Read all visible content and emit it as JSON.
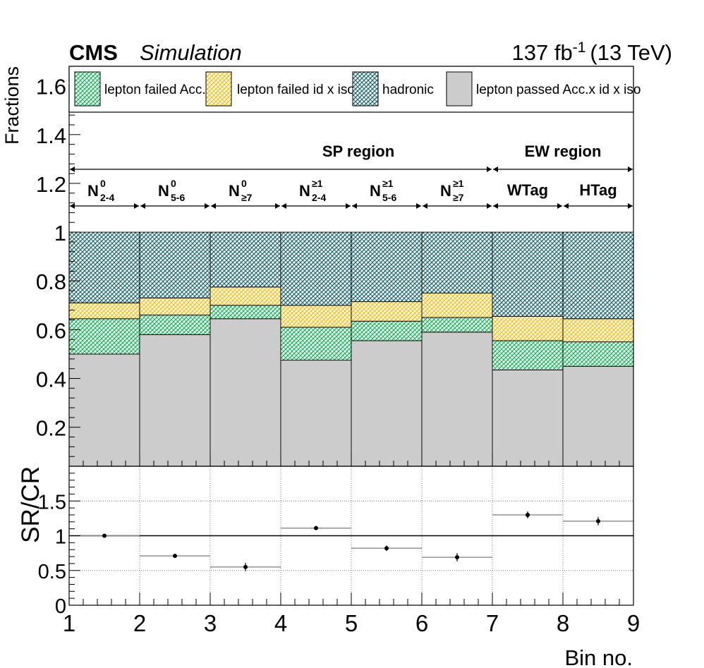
{
  "header": {
    "experiment": "CMS",
    "qualifier": "Simulation",
    "lumi_value": "137 fb",
    "lumi_exp": "-1",
    "energy": "(13 TeV)"
  },
  "chart_data": [
    {
      "type": "bar",
      "stacked": true,
      "ylabel": "Fractions",
      "xlim": [
        1,
        9
      ],
      "ylim": [
        0.04,
        1.68
      ],
      "yticks": [
        "0.2",
        "0.4",
        "0.6",
        "0.8",
        "1",
        "1.2",
        "1.4",
        "1.6"
      ],
      "bins": [
        1,
        2,
        3,
        4,
        5,
        6,
        7,
        8,
        9
      ],
      "series": [
        {
          "name": "lepton passed Acc.x id x iso",
          "values": [
            0.5,
            0.58,
            0.645,
            0.475,
            0.555,
            0.59,
            0.435,
            0.45
          ],
          "color": "#cccccc",
          "pattern": "solid"
        },
        {
          "name": "lepton failed Acc.",
          "values": [
            0.145,
            0.08,
            0.055,
            0.135,
            0.08,
            0.06,
            0.12,
            0.1
          ],
          "color": "#2fbf6a",
          "pattern": "hatch"
        },
        {
          "name": "lepton failed id x iso",
          "values": [
            0.065,
            0.07,
            0.075,
            0.09,
            0.08,
            0.1,
            0.1,
            0.095
          ],
          "color": "#f2c22e",
          "pattern": "hatch"
        },
        {
          "name": "hadronic",
          "values": [
            0.29,
            0.27,
            0.225,
            0.3,
            0.285,
            0.25,
            0.345,
            0.355
          ],
          "color": "#2e6e75",
          "pattern": "hatch"
        }
      ],
      "legend": {
        "placement": "top",
        "order": [
          "lepton failed Acc.",
          "lepton failed id x iso",
          "hadronic",
          "lepton passed Acc.x id x iso"
        ]
      },
      "regions": [
        {
          "label": "SP region",
          "from": 1,
          "to": 7
        },
        {
          "label": "EW region",
          "from": 7,
          "to": 9
        }
      ],
      "categories": [
        {
          "from": 1,
          "to": 2,
          "base": "N",
          "sup": "0",
          "sub": "2-4"
        },
        {
          "from": 2,
          "to": 3,
          "base": "N",
          "sup": "0",
          "sub": "5-6"
        },
        {
          "from": 3,
          "to": 4,
          "base": "N",
          "sup": "0",
          "sub": "≥7"
        },
        {
          "from": 4,
          "to": 5,
          "base": "N",
          "sup": "≥1",
          "sub": "2-4"
        },
        {
          "from": 5,
          "to": 6,
          "base": "N",
          "sup": "≥1",
          "sub": "5-6"
        },
        {
          "from": 6,
          "to": 7,
          "base": "N",
          "sup": "≥1",
          "sub": "≥7"
        },
        {
          "from": 7,
          "to": 8,
          "base": "WTag",
          "sup": "",
          "sub": ""
        },
        {
          "from": 8,
          "to": 9,
          "base": "HTag",
          "sup": "",
          "sub": ""
        }
      ]
    },
    {
      "type": "scatter",
      "xlabel": "Bin no.",
      "ylabel": "SR/CR",
      "xlim": [
        1,
        9
      ],
      "ylim": [
        0,
        2
      ],
      "xticks": [
        "1",
        "2",
        "3",
        "4",
        "5",
        "6",
        "7",
        "8",
        "9"
      ],
      "yticks": [
        "0",
        "0.5",
        "1",
        "1.5"
      ],
      "grid": true,
      "reference_line": 1,
      "points": [
        {
          "x": 1.5,
          "y": 1.0,
          "err": 0.015,
          "xerr": 0.5
        },
        {
          "x": 2.5,
          "y": 0.71,
          "err": 0.03,
          "xerr": 0.5
        },
        {
          "x": 3.5,
          "y": 0.55,
          "err": 0.06,
          "xerr": 0.5
        },
        {
          "x": 4.5,
          "y": 1.11,
          "err": 0.03,
          "xerr": 0.5
        },
        {
          "x": 5.5,
          "y": 0.82,
          "err": 0.04,
          "xerr": 0.5
        },
        {
          "x": 6.5,
          "y": 0.69,
          "err": 0.06,
          "xerr": 0.5
        },
        {
          "x": 7.5,
          "y": 1.3,
          "err": 0.05,
          "xerr": 0.5
        },
        {
          "x": 8.5,
          "y": 1.21,
          "err": 0.06,
          "xerr": 0.5
        }
      ]
    }
  ]
}
